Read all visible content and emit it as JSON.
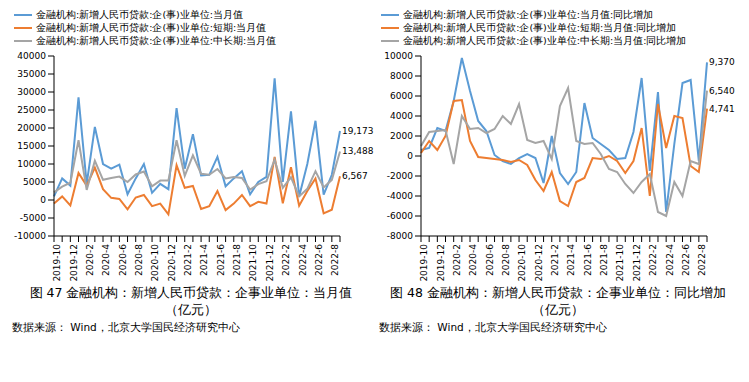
{
  "chart_data": [
    {
      "type": "line",
      "title": "图 47 金融机构：新增人民币贷款：企事业单位：当月值（亿元）",
      "source": "数据来源： Wind，北京大学国民经济研究中心",
      "legend": "top",
      "categories": [
        "2019-10",
        null,
        "2019-12",
        null,
        "2020-2",
        null,
        "2020-4",
        null,
        "2020-6",
        null,
        "2020-8",
        null,
        "2020-10",
        null,
        "2020-12",
        null,
        "2021-2",
        null,
        "2021-4",
        null,
        "2021-6",
        null,
        "2021-8",
        null,
        "2021-10",
        null,
        "2021-12",
        null,
        "2022-2",
        null,
        "2022-4",
        null,
        "2022-6",
        null,
        "2022-8",
        null
      ],
      "ylim": [
        -10000,
        40000
      ],
      "yticks": [
        -10000,
        -5000,
        0,
        5000,
        10000,
        15000,
        20000,
        25000,
        30000,
        35000,
        40000
      ],
      "series": [
        {
          "name": "金融机构:新增人民币贷款:企(事)业单位:当月值",
          "color": "#5b9bd5",
          "values": [
            1000,
            6000,
            4000,
            28500,
            4500,
            20300,
            10000,
            8700,
            9800,
            1600,
            6000,
            10000,
            2000,
            4500,
            3000,
            25500,
            8700,
            18300,
            6800,
            7000,
            12000,
            3800,
            6000,
            8000,
            1600,
            5000,
            6400,
            33800,
            5000,
            24600,
            1000,
            10000,
            22000,
            1500,
            7000,
            19173
          ],
          "value_labels": [
            null,
            null,
            null,
            null,
            null,
            null,
            null,
            null,
            null,
            null,
            null,
            null,
            null,
            null,
            null,
            null,
            null,
            null,
            null,
            null,
            null,
            null,
            null,
            null,
            null,
            null,
            null,
            null,
            null,
            null,
            null,
            null,
            null,
            null,
            null,
            "19,173"
          ]
        },
        {
          "name": "金融机构:新增人民币贷款:企(事)业单位:短期:当月值",
          "color": "#ed7d31",
          "values": [
            -1000,
            1000,
            -1500,
            7500,
            4000,
            9000,
            3000,
            600,
            300,
            -2600,
            700,
            1400,
            -1700,
            -1000,
            -4000,
            9700,
            3400,
            3900,
            -2500,
            -1700,
            2500,
            -2800,
            -1000,
            1400,
            -1700,
            -500,
            -1000,
            12000,
            -900,
            9100,
            -1600,
            2500,
            6000,
            -3700,
            -2700,
            6567
          ],
          "value_labels": [
            null,
            null,
            null,
            null,
            null,
            null,
            null,
            null,
            null,
            null,
            null,
            null,
            null,
            null,
            null,
            null,
            null,
            null,
            null,
            null,
            null,
            null,
            null,
            null,
            null,
            null,
            null,
            null,
            null,
            null,
            null,
            null,
            null,
            null,
            null,
            "6,567"
          ]
        },
        {
          "name": "金融机构:新增人民币贷款:企(事)业单位:中长期:当月值",
          "color": "#a5a5a5",
          "values": [
            2100,
            3700,
            4800,
            16600,
            2800,
            10900,
            5600,
            6100,
            6500,
            5000,
            7100,
            7900,
            3800,
            5400,
            5400,
            16600,
            6700,
            12400,
            7300,
            7000,
            8600,
            6000,
            6400,
            6100,
            2900,
            4400,
            5200,
            11200,
            3400,
            6300,
            1000,
            3100,
            8000,
            3500,
            5600,
            13488
          ],
          "value_labels": [
            null,
            null,
            null,
            null,
            null,
            null,
            null,
            null,
            null,
            null,
            null,
            null,
            null,
            null,
            null,
            null,
            null,
            null,
            null,
            null,
            null,
            null,
            null,
            null,
            null,
            null,
            null,
            null,
            null,
            null,
            null,
            null,
            null,
            null,
            null,
            "13,488"
          ]
        }
      ]
    },
    {
      "type": "line",
      "title": "图 48 金融机构：新增人民币贷款：企事业单位：同比增加（亿元）",
      "source": "数据来源： Wind，北京大学国民经济研究中心",
      "legend": "top",
      "categories": [
        "2019-10",
        null,
        "2019-12",
        null,
        "2020-2",
        null,
        "2020-4",
        null,
        "2020-6",
        null,
        "2020-8",
        null,
        "2020-10",
        null,
        "2020-12",
        null,
        "2021-2",
        null,
        "2021-4",
        null,
        "2021-6",
        null,
        "2021-8",
        null,
        "2021-10",
        null,
        "2021-12",
        null,
        "2022-2",
        null,
        "2022-4",
        null,
        "2022-6",
        null,
        "2022-8",
        null
      ],
      "ylim": [
        -8000,
        10000
      ],
      "yticks": [
        -8000,
        -6000,
        -4000,
        -2000,
        0,
        2000,
        4000,
        6000,
        8000,
        10000
      ],
      "series": [
        {
          "name": "金融机构:新增人民币贷款:企(事)业单位:当月值:同比增加",
          "color": "#5b9bd5",
          "values": [
            600,
            800,
            2800,
            2500,
            5500,
            9800,
            6500,
            3500,
            2500,
            100,
            -500,
            -800,
            -200,
            200,
            -200,
            -2700,
            2000,
            -1700,
            -2800,
            -1600,
            5300,
            1800,
            1200,
            600,
            -300,
            -200,
            2400,
            7800,
            -1500,
            6400,
            -5600,
            1200,
            7300,
            7600,
            -500,
            9370
          ],
          "value_labels": [
            null,
            null,
            null,
            null,
            null,
            null,
            null,
            null,
            null,
            null,
            null,
            null,
            null,
            null,
            null,
            null,
            null,
            null,
            null,
            null,
            null,
            null,
            null,
            null,
            null,
            null,
            null,
            null,
            null,
            null,
            null,
            null,
            null,
            null,
            null,
            "9,370"
          ]
        },
        {
          "name": "金融机构:新增人民币贷款:企(事)业单位:短期:当月值:同比增加",
          "color": "#ed7d31",
          "values": [
            300,
            1500,
            600,
            2000,
            5500,
            5600,
            1500,
            -100,
            -200,
            -300,
            -400,
            -600,
            -400,
            -900,
            -2400,
            -3500,
            -1600,
            -4500,
            -5000,
            -2600,
            -2200,
            -200,
            -300,
            0,
            -500,
            -1700,
            -500,
            2800,
            -4000,
            5200,
            800,
            4000,
            3800,
            -1000,
            -1600,
            4741
          ],
          "value_labels": [
            null,
            null,
            null,
            null,
            null,
            null,
            null,
            null,
            null,
            null,
            null,
            null,
            null,
            null,
            null,
            null,
            null,
            null,
            null,
            null,
            null,
            null,
            null,
            null,
            null,
            null,
            null,
            null,
            null,
            null,
            null,
            null,
            null,
            null,
            null,
            "4,741"
          ]
        },
        {
          "name": "金融机构:新增人民币贷款:企(事)业单位:中长期:当月值:同比增加",
          "color": "#a5a5a5",
          "values": [
            1000,
            2400,
            2500,
            2600,
            -800,
            4000,
            2700,
            2800,
            2300,
            2700,
            4000,
            3200,
            5200,
            1600,
            1300,
            1500,
            -300,
            5000,
            6800,
            1500,
            1200,
            1300,
            200,
            -1300,
            -1600,
            -2800,
            -3700,
            -2600,
            -1800,
            -5600,
            -6000,
            -2600,
            -4000,
            -500,
            -800,
            6540
          ],
          "value_labels": [
            null,
            null,
            null,
            null,
            null,
            null,
            null,
            null,
            null,
            null,
            null,
            null,
            null,
            null,
            null,
            null,
            null,
            null,
            null,
            null,
            null,
            null,
            null,
            null,
            null,
            null,
            null,
            null,
            null,
            null,
            null,
            null,
            null,
            null,
            null,
            "6,540"
          ]
        }
      ]
    }
  ]
}
